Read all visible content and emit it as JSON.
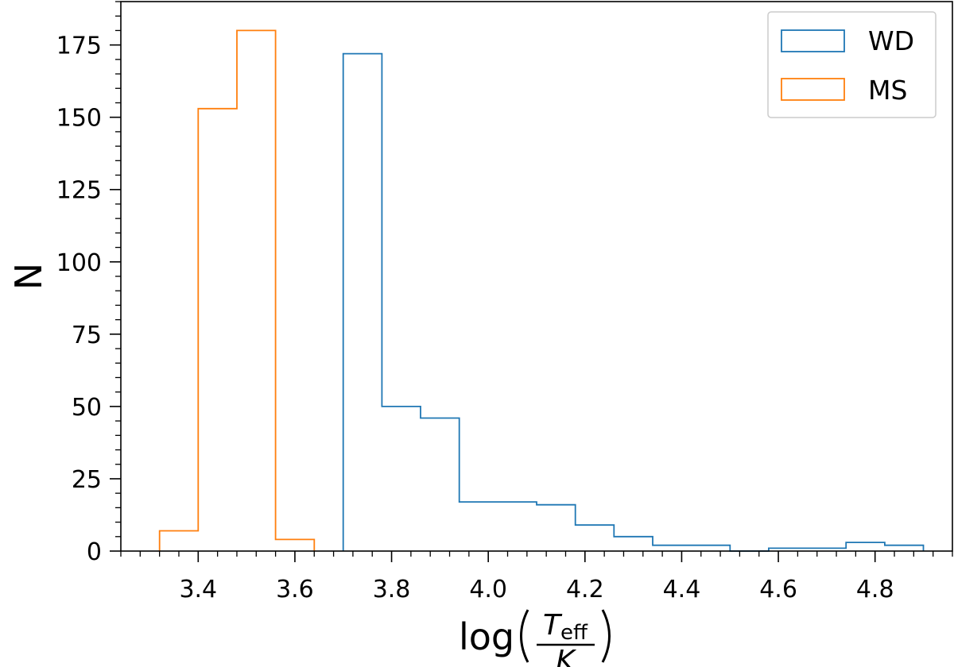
{
  "chart_data": {
    "type": "histogram",
    "xlabel": {
      "prefix": "log",
      "numerator_symbol": "T",
      "numerator_subscript": "eff",
      "denominator": "K"
    },
    "ylabel": "N",
    "xlim": [
      3.24,
      4.96
    ],
    "ylim": [
      0,
      190
    ],
    "x_ticks": [
      3.4,
      3.6,
      3.8,
      4.0,
      4.2,
      4.4,
      4.6,
      4.8
    ],
    "x_tick_labels": [
      "3.4",
      "3.6",
      "3.8",
      "4.0",
      "4.2",
      "4.4",
      "4.6",
      "4.8"
    ],
    "x_minor_step": 0.04,
    "y_ticks": [
      0,
      25,
      50,
      75,
      100,
      125,
      150,
      175
    ],
    "y_tick_labels": [
      "0",
      "25",
      "50",
      "75",
      "100",
      "125",
      "150",
      "175"
    ],
    "y_minor_step": 5,
    "grid": false,
    "legend_position": "top-right",
    "series": [
      {
        "name": "WD",
        "color": "#1f77b4",
        "bin_edges": [
          3.7,
          3.78,
          3.86,
          3.94,
          4.02,
          4.1,
          4.18,
          4.26,
          4.34,
          4.42,
          4.5,
          4.58,
          4.66,
          4.74,
          4.82,
          4.9
        ],
        "counts": [
          172,
          50,
          46,
          17,
          17,
          16,
          9,
          5,
          2,
          2,
          0,
          1,
          1,
          3,
          2
        ]
      },
      {
        "name": "MS",
        "color": "#ff7f0e",
        "bin_edges": [
          3.32,
          3.4,
          3.48,
          3.56,
          3.64
        ],
        "counts": [
          7,
          153,
          180,
          4
        ]
      }
    ]
  }
}
